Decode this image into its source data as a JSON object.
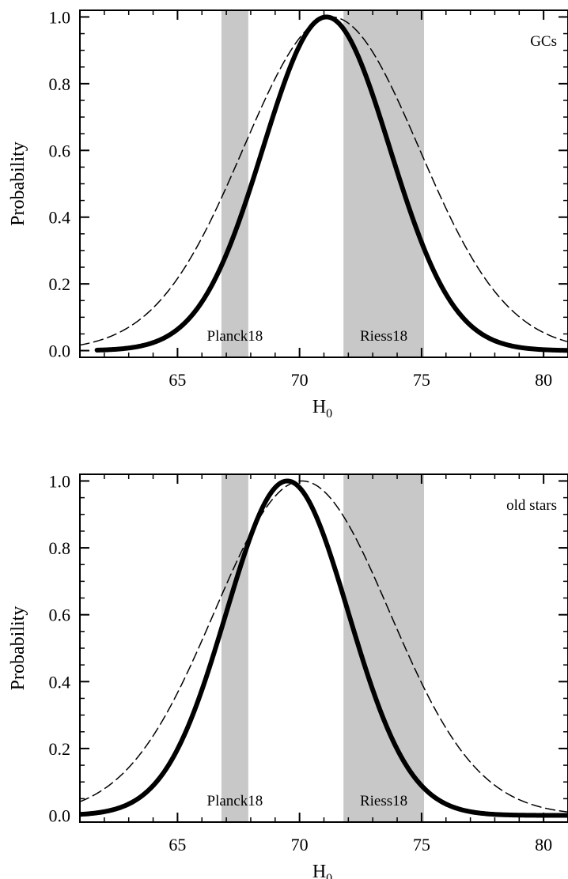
{
  "chart_data": [
    {
      "type": "line",
      "annotation": "GCs",
      "xlabel": "H",
      "xlabel_sub": "0",
      "ylabel": "Probability",
      "xlim": [
        61,
        81
      ],
      "ylim": [
        -0.02,
        1.02
      ],
      "xticks": [
        65,
        70,
        75,
        80
      ],
      "yticks": [
        0.0,
        0.2,
        0.4,
        0.6,
        0.8,
        1.0
      ],
      "ytick_labels": [
        "0.0",
        "0.2",
        "0.4",
        "0.6",
        "0.8",
        "1.0"
      ],
      "bands": [
        {
          "label": "Planck18",
          "x0": 66.8,
          "x1": 67.9,
          "color": "#c8c8c8"
        },
        {
          "label": "Riess18",
          "x0": 71.8,
          "x1": 75.1,
          "color": "#c8c8c8"
        }
      ],
      "series": [
        {
          "style": "solid",
          "mean": 71.1,
          "sigma": 2.6,
          "x_range": [
            61.7,
            81
          ]
        },
        {
          "style": "dashed",
          "mean": 71.3,
          "sigma": 3.6,
          "x_range": [
            61,
            81
          ]
        }
      ]
    },
    {
      "type": "line",
      "annotation": "old stars",
      "xlabel": "H",
      "xlabel_sub": "0",
      "ylabel": "Probability",
      "xlim": [
        61,
        81
      ],
      "ylim": [
        -0.02,
        1.02
      ],
      "xticks": [
        65,
        70,
        75,
        80
      ],
      "yticks": [
        0.0,
        0.2,
        0.4,
        0.6,
        0.8,
        1.0
      ],
      "ytick_labels": [
        "0.0",
        "0.2",
        "0.4",
        "0.6",
        "0.8",
        "1.0"
      ],
      "bands": [
        {
          "label": "Planck18",
          "x0": 66.8,
          "x1": 67.9,
          "color": "#c8c8c8"
        },
        {
          "label": "Riess18",
          "x0": 71.8,
          "x1": 75.1,
          "color": "#c8c8c8"
        }
      ],
      "series": [
        {
          "style": "solid",
          "mean": 69.5,
          "sigma": 2.5,
          "x_range": [
            61,
            81
          ]
        },
        {
          "style": "dashed",
          "mean": 70.1,
          "sigma": 3.6,
          "x_range": [
            61,
            81
          ]
        }
      ]
    }
  ]
}
